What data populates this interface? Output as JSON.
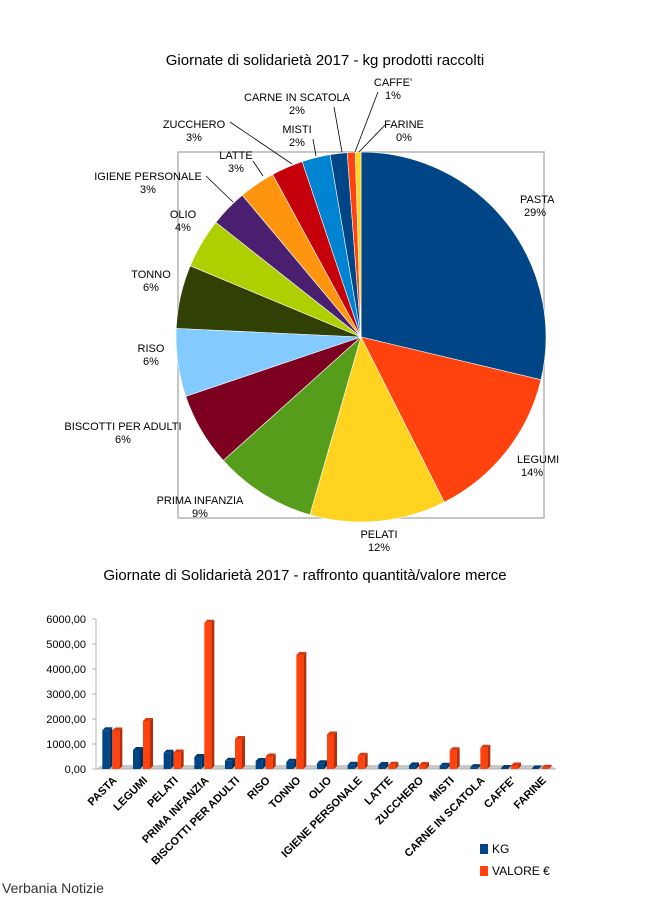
{
  "footer": "Verbania Notizie",
  "chart_data": [
    {
      "type": "pie",
      "title": "Giornate di solidarietà 2017 - kg prodotti raccolti",
      "slices": [
        {
          "label": "PASTA",
          "percent_label": "29%",
          "value": 29,
          "color": "#004586"
        },
        {
          "label": "LEGUMI",
          "percent_label": "14%",
          "value": 14,
          "color": "#ff420e"
        },
        {
          "label": "PELATI",
          "percent_label": "12%",
          "value": 12,
          "color": "#ffd320"
        },
        {
          "label": "PRIMA INFANZIA",
          "percent_label": "9%",
          "value": 9,
          "color": "#579d1c"
        },
        {
          "label": "BISCOTTI PER ADULTI",
          "percent_label": "6%",
          "value": 6.5,
          "color": "#7e0021"
        },
        {
          "label": "RISO",
          "percent_label": "6%",
          "value": 6,
          "color": "#83caff"
        },
        {
          "label": "TONNO",
          "percent_label": "6%",
          "value": 5.6,
          "color": "#314004"
        },
        {
          "label": "OLIO",
          "percent_label": "4%",
          "value": 4.4,
          "color": "#aecf00"
        },
        {
          "label": "IGIENE PERSONALE",
          "percent_label": "3%",
          "value": 3.3,
          "color": "#4b1f6f"
        },
        {
          "label": "LATTE",
          "percent_label": "3%",
          "value": 3.2,
          "color": "#ff950e"
        },
        {
          "label": "ZUCCHERO",
          "percent_label": "3%",
          "value": 2.8,
          "color": "#c5000b"
        },
        {
          "label": "MISTI",
          "percent_label": "2%",
          "value": 2.5,
          "color": "#0084d1"
        },
        {
          "label": "CARNE IN SCATOLA",
          "percent_label": "2%",
          "value": 1.5,
          "color": "#004586"
        },
        {
          "label": "CAFFE'",
          "percent_label": "1%",
          "value": 0.7,
          "color": "#ff420e"
        },
        {
          "label": "FARINE",
          "percent_label": "0%",
          "value": 0.5,
          "color": "#ffd320"
        }
      ]
    },
    {
      "type": "bar",
      "title": "Giornate di Solidarietà 2017 - raffronto quantità/valore merce",
      "categories": [
        "PASTA",
        "LEGUMI",
        "PELATI",
        "PRIMA INFANZIA",
        "BISCOTTI PER ADULTI",
        "RISO",
        "TONNO",
        "OLIO",
        "IGIENE PERSONALE",
        "LATTE",
        "ZUCCHERO",
        "MISTI",
        "CARNE IN SCATOLA",
        "CAFFE'",
        "FARINE"
      ],
      "series": [
        {
          "name": "KG",
          "color": "#004586",
          "values": [
            1550,
            760,
            650,
            480,
            330,
            320,
            290,
            230,
            170,
            160,
            145,
            130,
            75,
            40,
            20
          ]
        },
        {
          "name": "VALORE €",
          "color": "#ff420e",
          "values": [
            1540,
            1920,
            660,
            5850,
            1200,
            500,
            4560,
            1380,
            530,
            170,
            160,
            750,
            850,
            140,
            50
          ]
        }
      ],
      "ylim": [
        0,
        6000
      ],
      "yticks": [
        "0,00",
        "1000,00",
        "2000,00",
        "3000,00",
        "4000,00",
        "5000,00",
        "6000,00"
      ],
      "grid": false,
      "legend": "bottom-right"
    }
  ]
}
